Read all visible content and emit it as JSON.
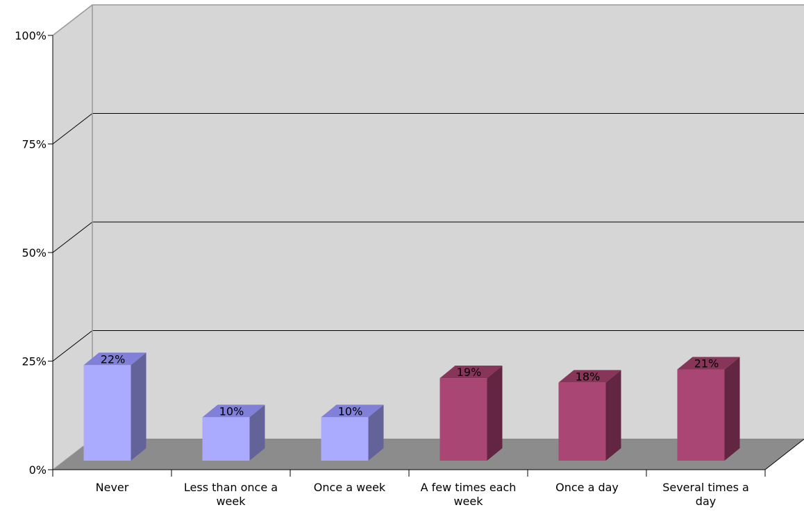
{
  "chart_data": {
    "type": "bar",
    "style": "3d-column",
    "title": "",
    "xlabel": "",
    "ylabel": "",
    "ylim": [
      0,
      100
    ],
    "y_ticks": [
      "0%",
      "25%",
      "50%",
      "75%",
      "100%"
    ],
    "y_tick_values": [
      0,
      25,
      50,
      75,
      100
    ],
    "grid": true,
    "legend": "none",
    "categories": [
      [
        "Never"
      ],
      [
        "Less than once a",
        "week"
      ],
      [
        "Once a week"
      ],
      [
        "A few times each",
        "week"
      ],
      [
        "Once a day"
      ],
      [
        "Several times a",
        "day"
      ]
    ],
    "values": [
      22,
      10,
      10,
      19,
      18,
      21
    ],
    "value_labels": [
      "22%",
      "10%",
      "10%",
      "19%",
      "18%",
      "21%"
    ],
    "bar_colors": [
      "#AAAAFF",
      "#AAAAFF",
      "#AAAAFF",
      "#AA4673",
      "#AA4673",
      "#AA4673"
    ],
    "bar_side_colors": [
      "#636399",
      "#636399",
      "#636399",
      "#632642",
      "#632642",
      "#632642"
    ],
    "bar_top_colors": [
      "#8080D8",
      "#8080D8",
      "#8080D8",
      "#873558",
      "#873558",
      "#873558"
    ],
    "wall_color": "#D6D6D6",
    "floor_color": "#8C8C8C"
  }
}
